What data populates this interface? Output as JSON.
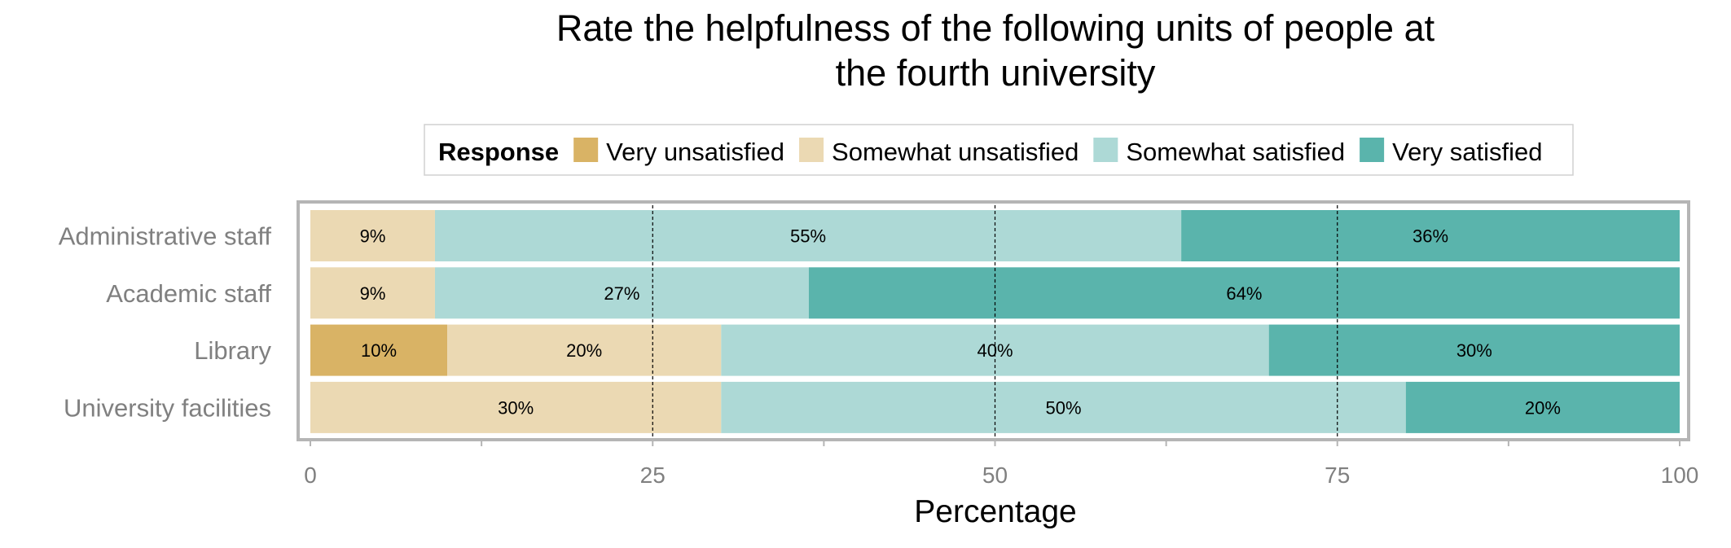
{
  "chart_data": {
    "type": "bar",
    "orientation": "horizontal",
    "stacked": true,
    "title": "Rate the helpfulness of the following units of people at the fourth university",
    "title_lines": [
      "Rate the helpfulness of the following units of people at",
      "the fourth university"
    ],
    "xlabel": "Percentage",
    "ylabel": "",
    "xlim": [
      0,
      100
    ],
    "xticks": [
      0,
      25,
      50,
      75,
      100
    ],
    "grid": "dashed vertical lines at 25, 50, 75",
    "legend": {
      "title": "Response",
      "position": "top",
      "entries": [
        "Very unsatisfied",
        "Somewhat unsatisfied",
        "Somewhat satisfied",
        "Very satisfied"
      ]
    },
    "categories": [
      "Administrative staff",
      "Academic staff",
      "Library",
      "University facilities"
    ],
    "series": [
      {
        "name": "Very unsatisfied",
        "color": "#D9B365",
        "values": [
          0,
          0,
          10,
          0
        ],
        "labels": [
          "",
          "",
          "10%",
          ""
        ]
      },
      {
        "name": "Somewhat unsatisfied",
        "color": "#EBD9B3",
        "values": [
          9.1,
          9.1,
          20,
          30
        ],
        "labels": [
          "9%",
          "9%",
          "20%",
          "30%"
        ]
      },
      {
        "name": "Somewhat satisfied",
        "color": "#ADD9D6",
        "values": [
          54.5,
          27.3,
          40,
          50
        ],
        "labels": [
          "55%",
          "27%",
          "40%",
          "50%"
        ]
      },
      {
        "name": "Very satisfied",
        "color": "#5AB4AC",
        "values": [
          36.4,
          63.6,
          30,
          20
        ],
        "labels": [
          "36%",
          "64%",
          "30%",
          "20%"
        ]
      }
    ]
  }
}
